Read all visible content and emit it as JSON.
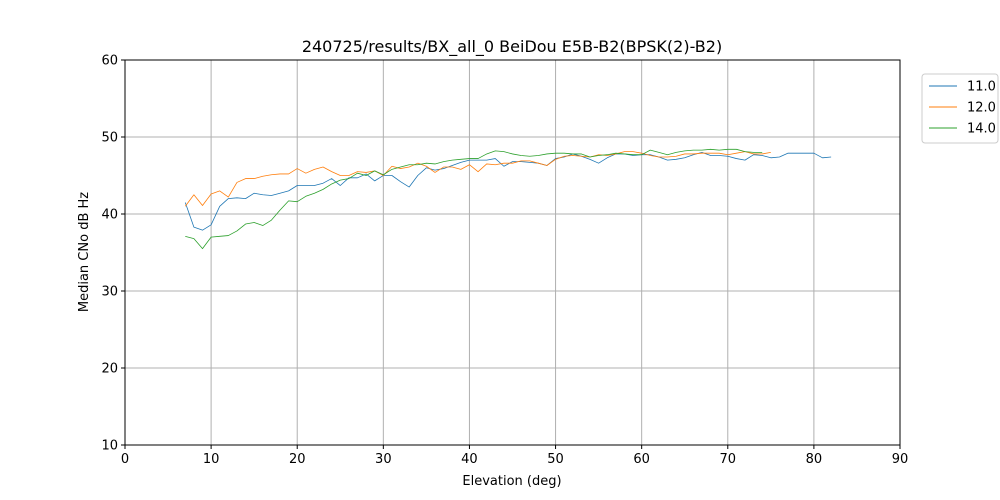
{
  "chart_data": {
    "type": "line",
    "title": "240725/results/BX_all_0 BeiDou E5B-B2(BPSK(2)-B2)",
    "xlabel": "Elevation (deg)",
    "ylabel": "Median CNo dB Hz",
    "xlim": [
      0,
      90
    ],
    "ylim": [
      10,
      60
    ],
    "xticks": [
      "0",
      "10",
      "20",
      "30",
      "40",
      "50",
      "60",
      "70",
      "80",
      "90"
    ],
    "yticks": [
      "10",
      "20",
      "30",
      "40",
      "50",
      "60"
    ],
    "grid": true,
    "legend_position": "upper right, outside plot",
    "series": [
      {
        "name": "11.0",
        "color": "#1f77b4",
        "x": [
          7,
          8,
          9,
          10,
          11,
          12,
          13,
          14,
          15,
          16,
          17,
          18,
          19,
          20,
          21,
          22,
          23,
          24,
          25,
          26,
          27,
          28,
          29,
          30,
          31,
          32,
          33,
          34,
          35,
          36,
          37,
          38,
          39,
          40,
          41,
          42,
          43,
          44,
          45,
          46,
          47,
          48,
          49,
          50,
          51,
          52,
          53,
          54,
          55,
          56,
          57,
          58,
          59,
          60,
          61,
          62,
          63,
          64,
          65,
          66,
          67,
          68,
          69,
          70,
          71,
          72,
          73,
          74,
          75,
          76,
          77,
          78,
          79,
          80,
          81,
          82
        ],
        "y": [
          41.5,
          38.3,
          37.9,
          38.6,
          41.0,
          42.0,
          42.1,
          42.0,
          42.7,
          42.5,
          42.4,
          42.7,
          43.0,
          43.7,
          43.7,
          43.7,
          44.0,
          44.6,
          43.7,
          44.7,
          44.7,
          45.2,
          44.3,
          45.0,
          45.0,
          44.2,
          43.5,
          45.0,
          46.0,
          45.7,
          45.9,
          46.3,
          46.7,
          47.0,
          47.0,
          47.0,
          47.2,
          46.2,
          46.8,
          46.8,
          46.7,
          46.6,
          46.3,
          47.2,
          47.4,
          47.8,
          47.5,
          47.1,
          46.6,
          47.3,
          47.8,
          47.8,
          47.6,
          47.7,
          47.7,
          47.4,
          47.0,
          47.1,
          47.3,
          47.7,
          48.0,
          47.6,
          47.6,
          47.5,
          47.2,
          47.0,
          47.7,
          47.6,
          47.3,
          47.4,
          47.9,
          47.9,
          47.9,
          47.9,
          47.3,
          47.4
        ]
      },
      {
        "name": "12.0",
        "color": "#ff7f0e",
        "x": [
          7,
          8,
          9,
          10,
          11,
          12,
          13,
          14,
          15,
          16,
          17,
          18,
          19,
          20,
          21,
          22,
          23,
          24,
          25,
          26,
          27,
          28,
          29,
          30,
          31,
          32,
          33,
          34,
          35,
          36,
          37,
          38,
          39,
          40,
          41,
          42,
          43,
          44,
          45,
          46,
          47,
          48,
          49,
          50,
          51,
          52,
          53,
          54,
          55,
          56,
          57,
          58,
          59,
          60,
          61,
          62,
          63,
          64,
          65,
          66,
          67,
          68,
          69,
          70,
          71,
          72,
          73,
          74,
          75
        ],
        "y": [
          41.0,
          42.5,
          41.1,
          42.6,
          43.0,
          42.2,
          44.1,
          44.6,
          44.6,
          44.9,
          45.1,
          45.2,
          45.2,
          45.9,
          45.3,
          45.8,
          46.1,
          45.5,
          45.0,
          45.0,
          45.5,
          45.4,
          45.6,
          45.0,
          46.2,
          45.9,
          46.1,
          46.6,
          46.2,
          45.4,
          46.1,
          46.1,
          45.8,
          46.4,
          45.5,
          46.5,
          46.4,
          46.6,
          46.6,
          46.9,
          46.9,
          46.6,
          46.3,
          47.1,
          47.5,
          47.6,
          47.5,
          47.4,
          47.7,
          47.6,
          47.8,
          48.1,
          48.1,
          47.9,
          47.6,
          47.4,
          47.4,
          47.5,
          47.8,
          47.8,
          47.9,
          47.9,
          47.9,
          47.7,
          47.9,
          48.1,
          47.8,
          47.8,
          48.0
        ]
      },
      {
        "name": "14.0",
        "color": "#2ca02c",
        "x": [
          7,
          8,
          9,
          10,
          11,
          12,
          13,
          14,
          15,
          16,
          17,
          18,
          19,
          20,
          21,
          22,
          23,
          24,
          25,
          26,
          27,
          28,
          29,
          30,
          31,
          32,
          33,
          34,
          35,
          36,
          37,
          38,
          39,
          40,
          41,
          42,
          43,
          44,
          45,
          46,
          47,
          48,
          49,
          50,
          51,
          52,
          53,
          54,
          55,
          56,
          57,
          58,
          59,
          60,
          61,
          62,
          63,
          64,
          65,
          66,
          67,
          68,
          69,
          70,
          71,
          72,
          73,
          74
        ],
        "y": [
          37.1,
          36.8,
          35.5,
          37.0,
          37.1,
          37.2,
          37.8,
          38.7,
          38.9,
          38.5,
          39.2,
          40.5,
          41.7,
          41.6,
          42.3,
          42.7,
          43.2,
          43.9,
          44.4,
          44.6,
          45.3,
          45.0,
          45.6,
          45.1,
          45.8,
          46.1,
          46.4,
          46.4,
          46.6,
          46.5,
          46.8,
          47.0,
          47.1,
          47.2,
          47.2,
          47.8,
          48.2,
          48.1,
          47.8,
          47.6,
          47.5,
          47.6,
          47.8,
          47.9,
          47.9,
          47.8,
          47.8,
          47.4,
          47.6,
          47.7,
          47.9,
          47.8,
          47.7,
          47.7,
          48.3,
          48.0,
          47.7,
          48.0,
          48.2,
          48.3,
          48.3,
          48.4,
          48.3,
          48.4,
          48.4,
          48.1,
          48.0,
          48.0
        ]
      }
    ]
  }
}
